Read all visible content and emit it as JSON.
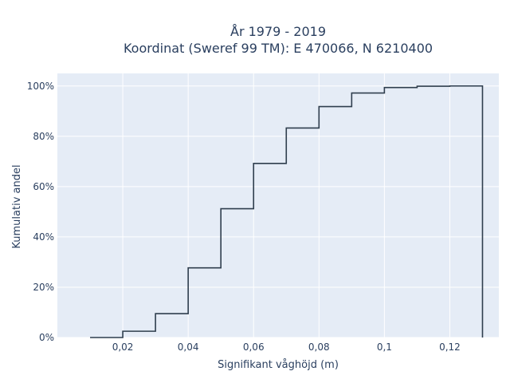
{
  "chart_data": {
    "type": "line",
    "line_shape": "step",
    "title_lines": [
      "År 1979 - 2019",
      "Koordinat (Sweref 99 TM): E 470066, N 6210400"
    ],
    "xlabel": "Signifikant våghöjd (m)",
    "ylabel": "Kumulativ andel",
    "xlim": [
      0.0,
      0.135
    ],
    "ylim": [
      0,
      1.05
    ],
    "x_ticks": [
      {
        "value": 0.02,
        "label": "0,02"
      },
      {
        "value": 0.04,
        "label": "0,04"
      },
      {
        "value": 0.06,
        "label": "0,06"
      },
      {
        "value": 0.08,
        "label": "0,08"
      },
      {
        "value": 0.1,
        "label": "0,1"
      },
      {
        "value": 0.12,
        "label": "0,12"
      }
    ],
    "y_ticks": [
      {
        "value": 0.0,
        "label": "0%"
      },
      {
        "value": 0.2,
        "label": "20%"
      },
      {
        "value": 0.4,
        "label": "40%"
      },
      {
        "value": 0.6,
        "label": "60%"
      },
      {
        "value": 0.8,
        "label": "80%"
      },
      {
        "value": 1.0,
        "label": "100%"
      }
    ],
    "x": [
      0.01,
      0.02,
      0.03,
      0.04,
      0.05,
      0.06,
      0.07,
      0.08,
      0.09,
      0.1,
      0.11,
      0.12,
      0.13
    ],
    "y": [
      0.0,
      0.025,
      0.095,
      0.277,
      0.512,
      0.692,
      0.833,
      0.918,
      0.972,
      0.994,
      0.999,
      1.0,
      0.0
    ],
    "grid": true,
    "colors": {
      "line": "#2f3e4e",
      "plot_bg": "#e5ecf6",
      "grid": "#ffffff",
      "text": "#2a3f5f"
    }
  }
}
